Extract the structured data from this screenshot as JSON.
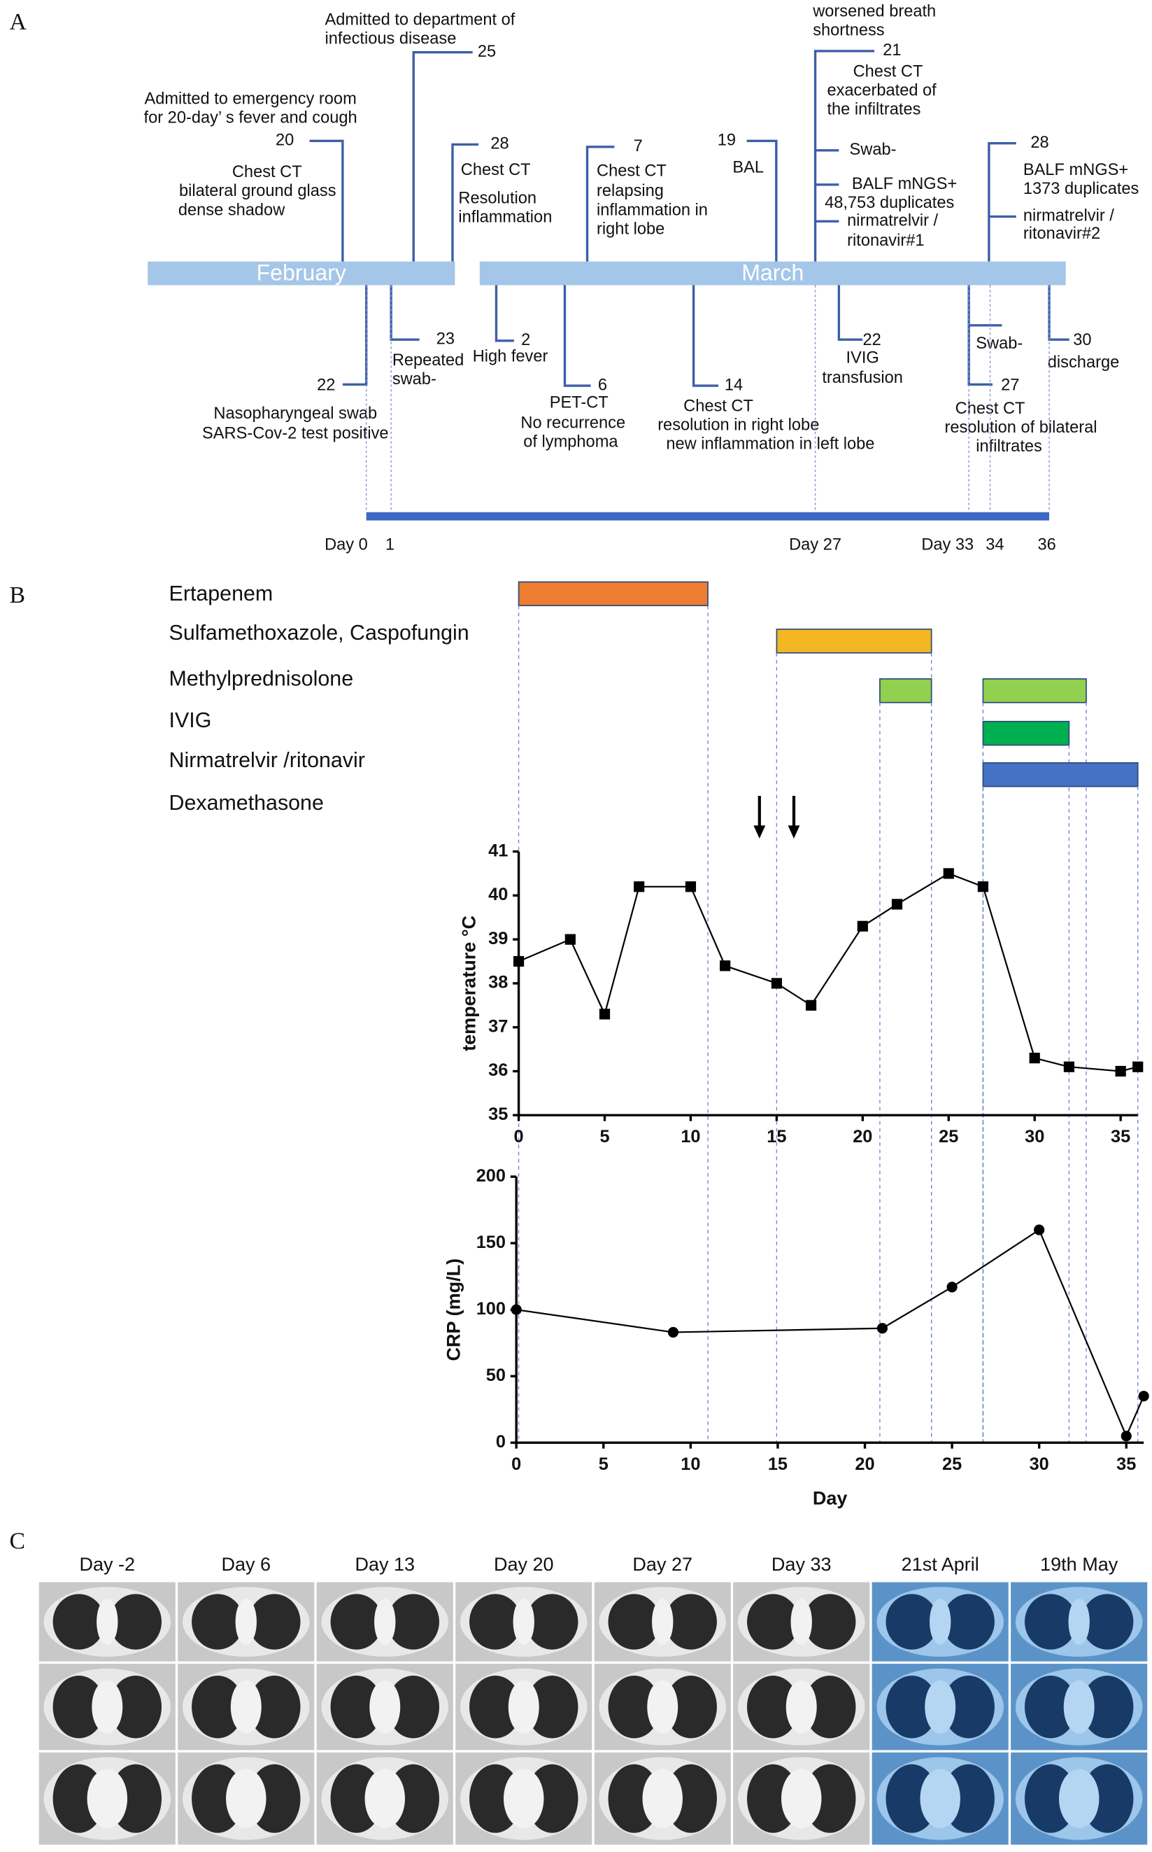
{
  "panel_a": {
    "label": "A",
    "months": [
      "February",
      "March"
    ],
    "events": [
      {
        "day": "20",
        "lines": [
          "Admitted to emergency room",
          "for 20-day’ s fever and cough",
          "Chest CT",
          "bilateral ground glass",
          "dense shadow"
        ]
      },
      {
        "day": "25",
        "lines": [
          "Admitted to department of",
          "infectious disease"
        ]
      },
      {
        "day": "28",
        "lines": [
          "Chest CT",
          "Resolution",
          "inflammation"
        ]
      },
      {
        "day": "7",
        "lines": [
          "Chest CT",
          "relapsing",
          "inflammation in",
          "right lobe"
        ]
      },
      {
        "day": "19",
        "lines": [
          "BAL"
        ]
      },
      {
        "day": "21",
        "lines": [
          "worsened breath",
          "shortness",
          "Chest CT",
          "exacerbated of",
          "the infiltrates",
          "Swab-",
          "BALF mNGS+",
          "48,753 duplicates",
          "nirmatrelvir /",
          "ritonavir#1"
        ]
      },
      {
        "day": "28",
        "lines": [
          "BALF mNGS+",
          "1373 duplicates",
          "nirmatrelvir /",
          "ritonavir#2"
        ]
      },
      {
        "day": "22",
        "lines": [
          "Nasopharyngeal swab",
          "SARS-Cov-2 test positive"
        ]
      },
      {
        "day": "23",
        "lines": [
          "Repeated",
          "swab-"
        ]
      },
      {
        "day": "2",
        "lines": [
          "High fever"
        ]
      },
      {
        "day": "6",
        "lines": [
          "PET-CT",
          "No recurrence",
          "of lymphoma"
        ]
      },
      {
        "day": "14",
        "lines": [
          "Chest CT",
          "resolution in right lobe",
          "new inflammation in left lobe"
        ]
      },
      {
        "day": "22",
        "lines": [
          "IVIG",
          "transfusion"
        ]
      },
      {
        "day": "27",
        "lines": [
          "Swab-",
          "Chest CT",
          "resolution of bilateral",
          "infiltrates"
        ]
      },
      {
        "day": "30",
        "lines": [
          "discharge"
        ]
      }
    ],
    "day_labels": [
      "Day 0",
      "1",
      "Day 27",
      "Day 33",
      "34",
      "36"
    ]
  },
  "panel_b": {
    "label": "B",
    "drugs": [
      {
        "name": "Ertapenem",
        "color": "#ed7d31",
        "periods": [
          [
            0,
            11
          ]
        ]
      },
      {
        "name": "Sulfamethoxazole, Caspofungin",
        "color": "#f2b722",
        "periods": [
          [
            15,
            24
          ]
        ]
      },
      {
        "name": "Methylprednisolone",
        "color": "#92d050",
        "periods": [
          [
            21,
            24
          ],
          [
            27,
            33
          ]
        ]
      },
      {
        "name": "IVIG",
        "color": "#00b050",
        "periods": [
          [
            27,
            32
          ]
        ]
      },
      {
        "name": "Nirmatrelvir /ritonavir",
        "color": "#4472c4",
        "periods": [
          [
            27,
            36
          ]
        ]
      },
      {
        "name": "Dexamethasone",
        "color": "#4472c4",
        "periods": []
      }
    ],
    "arrows": [
      14,
      16
    ],
    "temperature": {
      "type": "line",
      "ylabel": "temperature °C",
      "x": [
        0,
        3,
        5,
        7,
        10,
        12,
        15,
        17,
        20,
        22,
        25,
        27,
        30,
        32,
        35,
        36
      ],
      "values": [
        38.5,
        39.0,
        37.3,
        40.2,
        40.2,
        38.4,
        38.0,
        37.5,
        39.3,
        39.8,
        40.5,
        40.2,
        36.3,
        36.1,
        36.0,
        36.1
      ],
      "xlim": [
        0,
        36
      ],
      "xticks": [
        0,
        5,
        10,
        15,
        20,
        25,
        30,
        35
      ],
      "ylim": [
        35,
        41
      ],
      "yticks": [
        35,
        36,
        37,
        38,
        39,
        40,
        41
      ],
      "marker": "square"
    },
    "crp": {
      "type": "line",
      "ylabel": "CRP (mg/L)",
      "xlabel": "Day",
      "x": [
        0,
        9,
        21,
        25,
        30,
        35,
        36
      ],
      "values": [
        100,
        83,
        86,
        117,
        160,
        5,
        35
      ],
      "xlim": [
        0,
        36
      ],
      "xticks": [
        0,
        5,
        10,
        15,
        20,
        25,
        30,
        35
      ],
      "ylim": [
        0,
        200
      ],
      "yticks": [
        0,
        50,
        100,
        150,
        200
      ],
      "marker": "circle"
    }
  },
  "panel_c": {
    "label": "C",
    "labels": [
      "Day -2",
      "Day 6",
      "Day 13",
      "Day 20",
      "Day 27",
      "Day 33",
      "21st April",
      "19th May"
    ]
  }
}
